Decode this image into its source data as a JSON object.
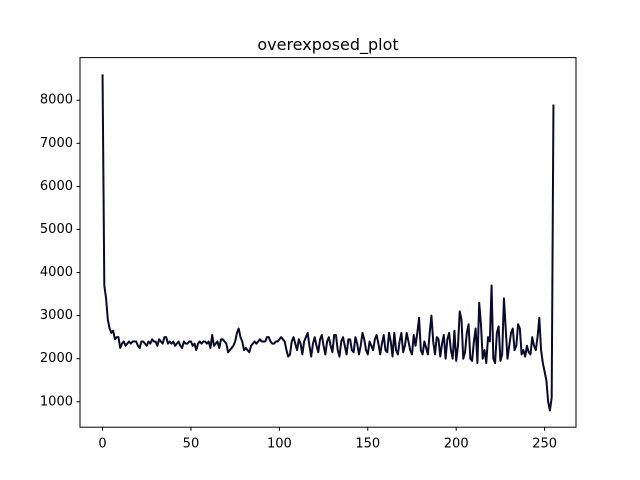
{
  "chart_data": {
    "type": "line",
    "title": "overexposed_plot",
    "color": "#0a0a2a",
    "xlim": [
      -12.75,
      267.75
    ],
    "xticks": [
      0,
      50,
      100,
      150,
      200,
      250
    ],
    "ylim": [
      410,
      8990
    ],
    "yticks": [
      1000,
      2000,
      3000,
      4000,
      5000,
      6000,
      7000,
      8000
    ],
    "x": [
      0,
      1,
      2,
      3,
      4,
      5,
      6,
      7,
      8,
      9,
      10,
      11,
      12,
      13,
      14,
      15,
      16,
      17,
      18,
      19,
      20,
      21,
      22,
      23,
      24,
      25,
      26,
      27,
      28,
      29,
      30,
      31,
      32,
      33,
      34,
      35,
      36,
      37,
      38,
      39,
      40,
      41,
      42,
      43,
      44,
      45,
      46,
      47,
      48,
      49,
      50,
      51,
      52,
      53,
      54,
      55,
      56,
      57,
      58,
      59,
      60,
      61,
      62,
      63,
      64,
      65,
      66,
      67,
      68,
      69,
      70,
      71,
      72,
      73,
      74,
      75,
      76,
      77,
      78,
      79,
      80,
      81,
      82,
      83,
      84,
      85,
      86,
      87,
      88,
      89,
      90,
      91,
      92,
      93,
      94,
      95,
      96,
      97,
      98,
      99,
      100,
      101,
      102,
      103,
      104,
      105,
      106,
      107,
      108,
      109,
      110,
      111,
      112,
      113,
      114,
      115,
      116,
      117,
      118,
      119,
      120,
      121,
      122,
      123,
      124,
      125,
      126,
      127,
      128,
      129,
      130,
      131,
      132,
      133,
      134,
      135,
      136,
      137,
      138,
      139,
      140,
      141,
      142,
      143,
      144,
      145,
      146,
      147,
      148,
      149,
      150,
      151,
      152,
      153,
      154,
      155,
      156,
      157,
      158,
      159,
      160,
      161,
      162,
      163,
      164,
      165,
      166,
      167,
      168,
      169,
      170,
      171,
      172,
      173,
      174,
      175,
      176,
      177,
      178,
      179,
      180,
      181,
      182,
      183,
      184,
      185,
      186,
      187,
      188,
      189,
      190,
      191,
      192,
      193,
      194,
      195,
      196,
      197,
      198,
      199,
      200,
      201,
      202,
      203,
      204,
      205,
      206,
      207,
      208,
      209,
      210,
      211,
      212,
      213,
      214,
      215,
      216,
      217,
      218,
      219,
      220,
      221,
      222,
      223,
      224,
      225,
      226,
      227,
      228,
      229,
      230,
      231,
      232,
      233,
      234,
      235,
      236,
      237,
      238,
      239,
      240,
      241,
      242,
      243,
      244,
      245,
      246,
      247,
      248,
      249,
      250,
      251,
      252,
      253,
      254,
      255
    ],
    "values": [
      8600,
      3700,
      3400,
      2900,
      2700,
      2600,
      2650,
      2450,
      2500,
      2500,
      2250,
      2350,
      2400,
      2300,
      2350,
      2400,
      2350,
      2400,
      2400,
      2400,
      2300,
      2250,
      2400,
      2400,
      2350,
      2300,
      2400,
      2350,
      2450,
      2400,
      2400,
      2300,
      2450,
      2400,
      2350,
      2500,
      2500,
      2350,
      2400,
      2350,
      2400,
      2300,
      2350,
      2400,
      2300,
      2250,
      2400,
      2350,
      2350,
      2400,
      2400,
      2300,
      2350,
      2200,
      2350,
      2400,
      2350,
      2400,
      2400,
      2350,
      2400,
      2250,
      2550,
      2300,
      2350,
      2400,
      2250,
      2450,
      2450,
      2400,
      2350,
      2150,
      2200,
      2250,
      2300,
      2400,
      2600,
      2700,
      2500,
      2400,
      2200,
      2250,
      2200,
      2150,
      2300,
      2350,
      2400,
      2350,
      2400,
      2450,
      2400,
      2400,
      2400,
      2500,
      2500,
      2400,
      2350,
      2350,
      2400,
      2400,
      2450,
      2500,
      2450,
      2400,
      2200,
      2050,
      2100,
      2400,
      2500,
      2350,
      2200,
      2450,
      2350,
      2100,
      2400,
      2500,
      2600,
      2300,
      2050,
      2350,
      2500,
      2300,
      2150,
      2450,
      2550,
      2300,
      2100,
      2400,
      2500,
      2300,
      2150,
      2550,
      2550,
      2200,
      2050,
      2400,
      2500,
      2300,
      2100,
      2450,
      2450,
      2200,
      2150,
      2500,
      2350,
      2100,
      2300,
      2600,
      2450,
      2200,
      2100,
      2400,
      2300,
      2200,
      2450,
      2550,
      2350,
      2100,
      2350,
      2550,
      2200,
      2150,
      2600,
      2400,
      2050,
      2600,
      2200,
      2100,
      2400,
      2600,
      2150,
      2300,
      2600,
      2400,
      2200,
      2100,
      2550,
      2300,
      2600,
      2950,
      2200,
      2100,
      2400,
      2250,
      2100,
      2600,
      3000,
      2400,
      2100,
      2500,
      2450,
      2050,
      2350,
      2550,
      2000,
      2450,
      2600,
      2200,
      2000,
      2650,
      1950,
      2300,
      3100,
      2900,
      2000,
      2150,
      2600,
      2800,
      2000,
      1950,
      2400,
      2700,
      1900,
      3300,
      2800,
      2000,
      2200,
      1900,
      2500,
      2400,
      3700,
      2000,
      1900,
      2600,
      2750,
      1950,
      2100,
      3400,
      2700,
      2000,
      2300,
      2600,
      2700,
      2200,
      2300,
      2800,
      2700,
      2100,
      2200,
      2050,
      2300,
      2150,
      2100,
      2500,
      2300,
      2200,
      2500,
      2950,
      2200,
      1900,
      1700,
      1500,
      1000,
      800,
      1100,
      7900
    ]
  }
}
